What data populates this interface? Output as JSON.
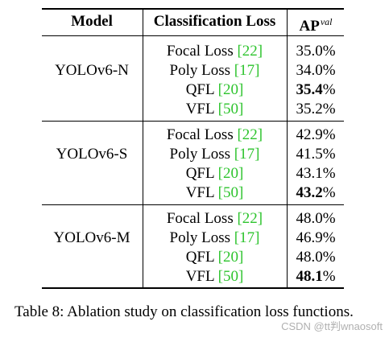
{
  "table": {
    "headers": {
      "model": "Model",
      "loss": "Classification Loss",
      "ap": "AP",
      "ap_sup": "val"
    },
    "groups": [
      {
        "model": "YOLOv6-N",
        "rows": [
          {
            "loss": "Focal Loss",
            "ref": "[22]",
            "ap": "35.0",
            "unit": "%",
            "bold": false
          },
          {
            "loss": "Poly Loss",
            "ref": "[17]",
            "ap": "34.0",
            "unit": "%",
            "bold": false
          },
          {
            "loss": "QFL",
            "ref": "[20]",
            "ap": "35.4",
            "unit": "%",
            "bold": true
          },
          {
            "loss": "VFL",
            "ref": "[50]",
            "ap": "35.2",
            "unit": "%",
            "bold": false
          }
        ]
      },
      {
        "model": "YOLOv6-S",
        "rows": [
          {
            "loss": "Focal Loss",
            "ref": "[22]",
            "ap": "42.9",
            "unit": "%",
            "bold": false
          },
          {
            "loss": "Poly Loss",
            "ref": "[17]",
            "ap": "41.5",
            "unit": "%",
            "bold": false
          },
          {
            "loss": "QFL",
            "ref": "[20]",
            "ap": "43.1",
            "unit": "%",
            "bold": false
          },
          {
            "loss": "VFL",
            "ref": "[50]",
            "ap": "43.2",
            "unit": "%",
            "bold": true
          }
        ]
      },
      {
        "model": "YOLOv6-M",
        "rows": [
          {
            "loss": "Focal Loss",
            "ref": "[22]",
            "ap": "48.0",
            "unit": "%",
            "bold": false
          },
          {
            "loss": "Poly Loss",
            "ref": "[17]",
            "ap": "46.9",
            "unit": "%",
            "bold": false
          },
          {
            "loss": "QFL",
            "ref": "[20]",
            "ap": "48.0",
            "unit": "%",
            "bold": false
          },
          {
            "loss": "VFL",
            "ref": "[50]",
            "ap": "48.1",
            "unit": "%",
            "bold": true
          }
        ]
      }
    ]
  },
  "caption": "Table 8: Ablation study on classification loss functions.",
  "watermark": "CSDN @tt判wnaosoft",
  "colors": {
    "reference_link": "#2ec42e",
    "watermark": "#b0b0b0"
  }
}
